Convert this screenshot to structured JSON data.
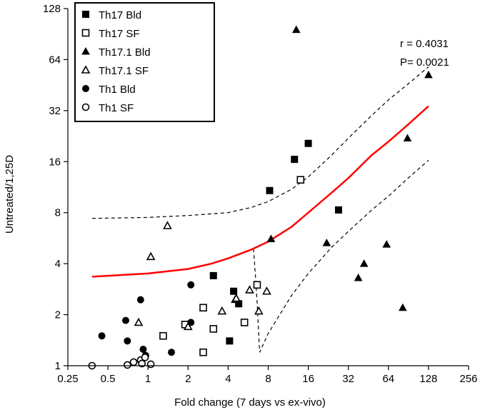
{
  "chart_data": {
    "type": "scatter",
    "title": "",
    "xlabel": "Fold change (7 days vs ex-vivo)",
    "ylabel": "Untreated/1,25D",
    "x_scale": "log2",
    "y_scale": "log2",
    "xlim": [
      0.25,
      256
    ],
    "ylim": [
      1,
      128
    ],
    "x_ticks": [
      "0.25",
      "0.5",
      "1",
      "2",
      "4",
      "8",
      "16",
      "32",
      "64",
      "128",
      "256"
    ],
    "x_tick_values": [
      0.25,
      0.5,
      1,
      2,
      4,
      8,
      16,
      32,
      64,
      128,
      256
    ],
    "y_ticks": [
      "1",
      "2",
      "4",
      "8",
      "16",
      "32",
      "64",
      "128"
    ],
    "y_tick_values": [
      1,
      2,
      4,
      8,
      16,
      32,
      64,
      128
    ],
    "grid": false,
    "legend_position": "top-left",
    "stats": {
      "r": "r = 0.4031",
      "p": "P= 0.0021"
    },
    "series": [
      {
        "name": "Th17 Bld",
        "marker": "square-filled",
        "points": [
          [
            3.1,
            3.4
          ],
          [
            4.4,
            2.75
          ],
          [
            4.8,
            2.32
          ],
          [
            8.2,
            10.8
          ],
          [
            12.6,
            16.5
          ],
          [
            16.0,
            20.5
          ],
          [
            27.0,
            8.3
          ],
          [
            4.1,
            1.4
          ]
        ]
      },
      {
        "name": "Th17 SF",
        "marker": "square-open",
        "points": [
          [
            1.3,
            1.5
          ],
          [
            1.9,
            1.75
          ],
          [
            2.6,
            2.2
          ],
          [
            3.1,
            1.65
          ],
          [
            2.6,
            1.2
          ],
          [
            5.3,
            1.8
          ],
          [
            6.6,
            3.0
          ],
          [
            14.0,
            12.5
          ]
        ]
      },
      {
        "name": "Th17.1 Bld",
        "marker": "triangle-filled",
        "points": [
          [
            13.0,
            96.0
          ],
          [
            128.0,
            52.0
          ],
          [
            89.0,
            22.0
          ],
          [
            22.0,
            5.3
          ],
          [
            8.4,
            5.6
          ],
          [
            42.0,
            4.0
          ],
          [
            38.0,
            3.3
          ],
          [
            62.0,
            5.2
          ],
          [
            82.0,
            2.2
          ],
          [
            4.5,
            2.45
          ]
        ]
      },
      {
        "name": "Th17.1 SF",
        "marker": "triangle-open",
        "points": [
          [
            1.05,
            4.4
          ],
          [
            1.4,
            6.7
          ],
          [
            0.85,
            1.8
          ],
          [
            2.0,
            1.7
          ],
          [
            3.6,
            2.1
          ],
          [
            4.6,
            2.5
          ],
          [
            5.8,
            2.8
          ],
          [
            6.8,
            2.1
          ],
          [
            7.8,
            2.75
          ]
        ]
      },
      {
        "name": "Th1 Bld",
        "marker": "circle-filled",
        "points": [
          [
            0.45,
            1.5
          ],
          [
            0.68,
            1.85
          ],
          [
            0.7,
            1.4
          ],
          [
            0.88,
            2.45
          ],
          [
            0.92,
            1.25
          ],
          [
            0.96,
            1.15
          ],
          [
            1.5,
            1.2
          ],
          [
            2.1,
            3.0
          ],
          [
            2.1,
            1.8
          ]
        ]
      },
      {
        "name": "Th1 SF",
        "marker": "circle-open",
        "points": [
          [
            0.38,
            1.0
          ],
          [
            0.7,
            1.01
          ],
          [
            0.78,
            1.05
          ],
          [
            0.88,
            1.08
          ],
          [
            0.95,
            1.12
          ],
          [
            1.05,
            1.02
          ],
          [
            0.9,
            1.03
          ]
        ]
      }
    ],
    "fit_line": {
      "color": "#ff0000",
      "points": [
        [
          0.38,
          3.35
        ],
        [
          1.0,
          3.5
        ],
        [
          2.0,
          3.72
        ],
        [
          3.0,
          4.0
        ],
        [
          4.0,
          4.3
        ],
        [
          6.0,
          4.85
        ],
        [
          8.0,
          5.4
        ],
        [
          12.0,
          6.6
        ],
        [
          16.0,
          8.0
        ],
        [
          24.0,
          10.5
        ],
        [
          32.0,
          12.8
        ],
        [
          48.0,
          17.5
        ],
        [
          64.0,
          21.0
        ],
        [
          90.0,
          26.5
        ],
        [
          128.0,
          34.0
        ]
      ]
    },
    "upper_band": {
      "points": [
        [
          0.38,
          7.4
        ],
        [
          1.0,
          7.5
        ],
        [
          2.0,
          7.7
        ],
        [
          4.0,
          8.0
        ],
        [
          6.0,
          8.6
        ],
        [
          8.0,
          9.3
        ],
        [
          12.0,
          11.0
        ],
        [
          16.0,
          13.0
        ],
        [
          24.0,
          17.5
        ],
        [
          32.0,
          22.0
        ],
        [
          48.0,
          30.0
        ],
        [
          64.0,
          37.0
        ],
        [
          90.0,
          46.0
        ],
        [
          128.0,
          58.0
        ]
      ]
    },
    "lower_band": {
      "points": [
        [
          6.2,
          4.9
        ],
        [
          6.4,
          3.5
        ],
        [
          6.6,
          2.4
        ],
        [
          6.9,
          1.2
        ],
        [
          8.0,
          1.55
        ],
        [
          12.0,
          2.6
        ],
        [
          16.0,
          3.5
        ],
        [
          24.0,
          5.0
        ],
        [
          32.0,
          6.2
        ],
        [
          48.0,
          8.3
        ],
        [
          64.0,
          10.0
        ],
        [
          90.0,
          12.8
        ],
        [
          128.0,
          16.3
        ]
      ]
    }
  }
}
